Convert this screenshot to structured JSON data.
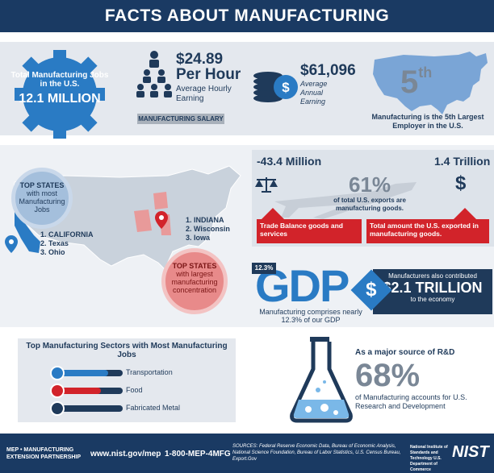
{
  "header": {
    "title": "FACTS ABOUT MANUFACTURING"
  },
  "jobs": {
    "label": "Total Manufacturing Jobs in the U.S.",
    "value": "12.1 MILLION"
  },
  "hourly": {
    "value": "$24.89",
    "unit": "Per Hour",
    "desc": "Average Hourly Earning",
    "tag": "MANUFACTURING SALARY"
  },
  "annual": {
    "value": "$61,096",
    "desc": "Average Annual Earning"
  },
  "rank": {
    "value": "5",
    "suffix": "th",
    "desc": "Manufacturing is the 5th Largest Employer in the U.S."
  },
  "states_most": {
    "title": "TOP STATES",
    "sub": "with most Manufacturing Jobs",
    "list": [
      "1. CALIFORNIA",
      "2. Texas",
      "3. Ohio"
    ]
  },
  "states_conc": {
    "title": "TOP STATES",
    "sub": "with largest manufacturing concentration",
    "list": [
      "1. INDIANA",
      "2. Wisconsin",
      "3. Iowa"
    ]
  },
  "trade": {
    "balance": "-43.4 Million",
    "exported": "1.4 Trillion",
    "pct": "61%",
    "pct_desc": "of total U.S. exports are manufacturing goods.",
    "balance_desc": "Trade Balance goods and services",
    "exported_desc": "Total amount the U.S. exported in manufacturing goods."
  },
  "gdp": {
    "badge": "12.3%",
    "title": "GDP",
    "desc": "Manufacturing comprises nearly 12.3% of our GDP",
    "contrib_a": "Manufacturers also contributed",
    "contrib_b": "$2.1 TRILLION",
    "contrib_c": "to the economy",
    "dollar": "$"
  },
  "sectors": {
    "title": "Top Manufacturing Sectors with Most Manufacturing Jobs",
    "items": [
      {
        "label": "Transportation",
        "level": 0.78,
        "color": "#2a7bc4",
        "icon": "car-icon"
      },
      {
        "label": "Food",
        "level": 0.66,
        "color": "#d2232a",
        "icon": "food-icon"
      },
      {
        "label": "Fabricated Metal",
        "level": 0.5,
        "color": "#1f3a5a",
        "icon": "metal-icon"
      }
    ]
  },
  "rd": {
    "a": "As a major source of R&D",
    "value": "68%",
    "c": "of Manufacturing accounts for U.S. Research and Development"
  },
  "footer": {
    "mep": "MEP • MANUFACTURING EXTENSION PARTNERSHIP",
    "web": "www.nist.gov/mep",
    "phone": "1-800-MEP-4MFG",
    "sources": "SOURCES: Federal Reserve Economic Data, Bureau of Economic Analysis, National Science Foundation, Bureau of Labor Statistics, U.S. Census Bureau, Export.Gov",
    "nist_org": "National Institute of Standards and Technology U.S. Department of Commerce",
    "nist": "NIST"
  }
}
